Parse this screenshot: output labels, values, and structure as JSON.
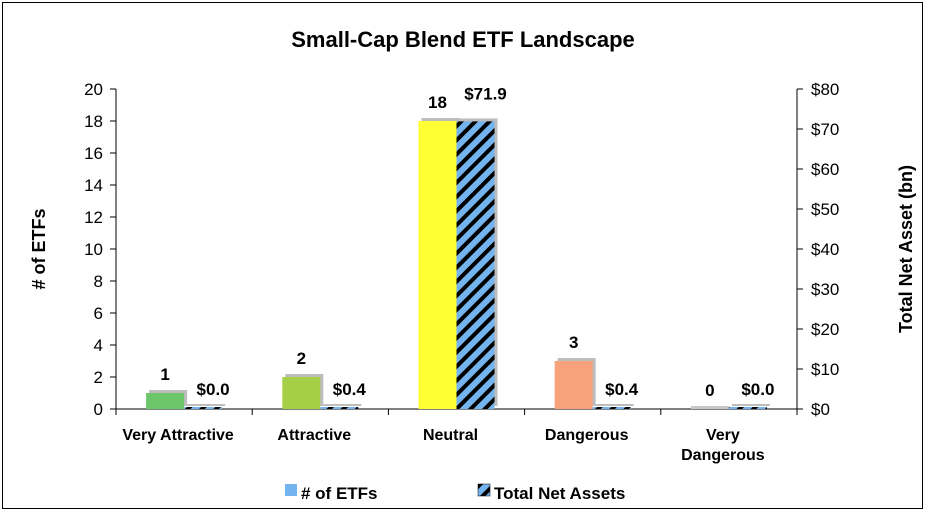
{
  "chart_data": {
    "type": "bar",
    "title": "Small-Cap Blend ETF Landscape",
    "categories": [
      "Very Attractive",
      "Attractive",
      "Neutral",
      "Dangerous",
      "Very Dangerous"
    ],
    "category_lines": [
      [
        "Very Attractive"
      ],
      [
        "Attractive"
      ],
      [
        "Neutral"
      ],
      [
        "Dangerous"
      ],
      [
        "Very",
        "Dangerous"
      ]
    ],
    "series": [
      {
        "name": "# of ETFs",
        "axis": "left",
        "values": [
          1,
          2,
          18,
          3,
          0
        ],
        "labels": [
          "1",
          "2",
          "18",
          "3",
          "0"
        ],
        "colors": [
          "#6cc66a",
          "#a5cf46",
          "#ffff33",
          "#f7a27a",
          "#c8c8c8"
        ],
        "legend_color": "#74b4ee"
      },
      {
        "name": "Total Net Assets",
        "axis": "right",
        "values": [
          0.0,
          0.4,
          71.9,
          0.4,
          0.0
        ],
        "labels": [
          "$0.0",
          "$0.4",
          "$71.9",
          "$0.4",
          "$0.0"
        ],
        "pattern": "diagonal-stripes",
        "stripe_colors": [
          "#74b4ee",
          "#000000"
        ]
      }
    ],
    "left_axis": {
      "label": "# of ETFs",
      "range": [
        0,
        20
      ],
      "ticks": [
        "0",
        "2",
        "4",
        "6",
        "8",
        "10",
        "12",
        "14",
        "16",
        "18",
        "20"
      ]
    },
    "right_axis": {
      "label": "Total Net Asset (bn)",
      "range": [
        0,
        80
      ],
      "ticks": [
        "$0",
        "$10",
        "$20",
        "$30",
        "$40",
        "$50",
        "$60",
        "$70",
        "$80"
      ]
    },
    "legend": "bottom",
    "grid": false
  }
}
